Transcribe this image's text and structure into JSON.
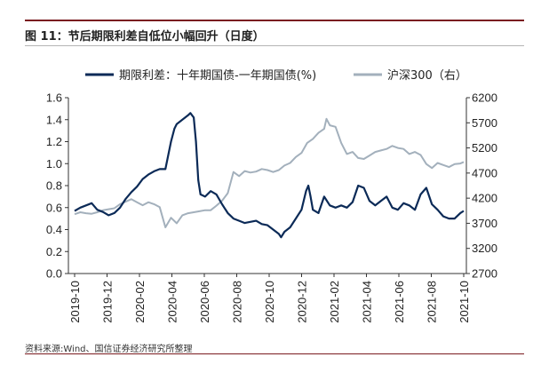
{
  "figure": {
    "title": "图 11：节后期限利差自低位小幅回升（日度）",
    "source": "资料来源:Wind、国信证券经济研究所整理"
  },
  "chart_data": {
    "type": "line",
    "legend": [
      {
        "name": "期限利差：十年期国债-一年期国债(%)",
        "color": "#0b2a57",
        "axis": "left"
      },
      {
        "name": "沪深300（右）",
        "color": "#a3b0bc",
        "axis": "right"
      }
    ],
    "x_tick_labels": [
      "2019-10",
      "2019-12",
      "2020-02",
      "2020-04",
      "2020-06",
      "2020-08",
      "2020-10",
      "2020-12",
      "2021-02",
      "2021-04",
      "2021-06",
      "2021-08",
      "2021-10"
    ],
    "y_left": {
      "min": 0.0,
      "max": 1.6,
      "ticks": [
        "0.0",
        "0.2",
        "0.4",
        "0.6",
        "0.8",
        "1.0",
        "1.2",
        "1.4",
        "1.6"
      ]
    },
    "y_right": {
      "min": 2700,
      "max": 6200,
      "ticks": [
        "2700",
        "3200",
        "3700",
        "4200",
        "4700",
        "5200",
        "5700",
        "6200"
      ]
    },
    "series": [
      {
        "name": "期限利差：十年期国债-一年期国债(%)",
        "axis": "left",
        "points": [
          [
            0,
            0.57
          ],
          [
            0.25,
            0.6
          ],
          [
            0.5,
            0.62
          ],
          [
            0.75,
            0.64
          ],
          [
            1,
            0.58
          ],
          [
            1.25,
            0.56
          ],
          [
            1.5,
            0.53
          ],
          [
            1.75,
            0.55
          ],
          [
            2,
            0.6
          ],
          [
            2.25,
            0.68
          ],
          [
            2.5,
            0.74
          ],
          [
            2.75,
            0.79
          ],
          [
            3,
            0.86
          ],
          [
            3.25,
            0.9
          ],
          [
            3.5,
            0.93
          ],
          [
            3.75,
            0.95
          ],
          [
            4,
            0.95
          ],
          [
            4.1,
            1.05
          ],
          [
            4.25,
            1.2
          ],
          [
            4.4,
            1.32
          ],
          [
            4.5,
            1.36
          ],
          [
            4.75,
            1.4
          ],
          [
            5,
            1.44
          ],
          [
            5.1,
            1.46
          ],
          [
            5.25,
            1.42
          ],
          [
            5.35,
            1.2
          ],
          [
            5.45,
            0.85
          ],
          [
            5.55,
            0.72
          ],
          [
            5.75,
            0.7
          ],
          [
            6,
            0.75
          ],
          [
            6.25,
            0.72
          ],
          [
            6.5,
            0.63
          ],
          [
            6.75,
            0.55
          ],
          [
            7,
            0.5
          ],
          [
            7.25,
            0.48
          ],
          [
            7.5,
            0.46
          ],
          [
            7.75,
            0.47
          ],
          [
            8,
            0.48
          ],
          [
            8.25,
            0.45
          ],
          [
            8.5,
            0.44
          ],
          [
            8.75,
            0.4
          ],
          [
            9,
            0.36
          ],
          [
            9.1,
            0.33
          ],
          [
            9.25,
            0.38
          ],
          [
            9.5,
            0.42
          ],
          [
            9.75,
            0.5
          ],
          [
            10,
            0.58
          ],
          [
            10.2,
            0.75
          ],
          [
            10.3,
            0.8
          ],
          [
            10.4,
            0.7
          ],
          [
            10.5,
            0.58
          ],
          [
            10.75,
            0.55
          ],
          [
            11,
            0.7
          ],
          [
            11.25,
            0.62
          ],
          [
            11.5,
            0.6
          ],
          [
            11.75,
            0.62
          ],
          [
            12,
            0.6
          ],
          [
            12.25,
            0.65
          ],
          [
            12.5,
            0.8
          ],
          [
            12.75,
            0.78
          ],
          [
            13,
            0.66
          ],
          [
            13.25,
            0.62
          ],
          [
            13.5,
            0.66
          ],
          [
            13.75,
            0.7
          ],
          [
            14,
            0.6
          ],
          [
            14.25,
            0.58
          ],
          [
            14.5,
            0.64
          ],
          [
            14.75,
            0.62
          ],
          [
            15,
            0.58
          ],
          [
            15.25,
            0.72
          ],
          [
            15.5,
            0.78
          ],
          [
            15.75,
            0.63
          ],
          [
            16,
            0.58
          ],
          [
            16.25,
            0.52
          ],
          [
            16.5,
            0.5
          ],
          [
            16.75,
            0.5
          ],
          [
            17,
            0.55
          ],
          [
            17.15,
            0.57
          ]
        ]
      },
      {
        "name": "沪深300（右）",
        "axis": "right",
        "points": [
          [
            0,
            3880
          ],
          [
            0.25,
            3920
          ],
          [
            0.5,
            3900
          ],
          [
            0.75,
            3890
          ],
          [
            1,
            3920
          ],
          [
            1.25,
            3960
          ],
          [
            1.5,
            3980
          ],
          [
            1.75,
            4000
          ],
          [
            2,
            4080
          ],
          [
            2.25,
            4130
          ],
          [
            2.5,
            4180
          ],
          [
            2.75,
            4120
          ],
          [
            3,
            4060
          ],
          [
            3.25,
            4120
          ],
          [
            3.5,
            4080
          ],
          [
            3.75,
            4020
          ],
          [
            4,
            3620
          ],
          [
            4.25,
            3810
          ],
          [
            4.5,
            3700
          ],
          [
            4.75,
            3860
          ],
          [
            5,
            3900
          ],
          [
            5.25,
            3920
          ],
          [
            5.5,
            3940
          ],
          [
            5.75,
            3960
          ],
          [
            6,
            3960
          ],
          [
            6.25,
            4050
          ],
          [
            6.5,
            4150
          ],
          [
            6.75,
            4300
          ],
          [
            7,
            4720
          ],
          [
            7.25,
            4640
          ],
          [
            7.5,
            4740
          ],
          [
            7.75,
            4710
          ],
          [
            8,
            4730
          ],
          [
            8.25,
            4780
          ],
          [
            8.5,
            4760
          ],
          [
            8.75,
            4720
          ],
          [
            9,
            4760
          ],
          [
            9.25,
            4850
          ],
          [
            9.5,
            4900
          ],
          [
            9.75,
            5020
          ],
          [
            10,
            5100
          ],
          [
            10.25,
            5300
          ],
          [
            10.5,
            5380
          ],
          [
            10.75,
            5500
          ],
          [
            11,
            5580
          ],
          [
            11.1,
            5780
          ],
          [
            11.25,
            5650
          ],
          [
            11.5,
            5620
          ],
          [
            11.75,
            5300
          ],
          [
            12,
            5080
          ],
          [
            12.25,
            5120
          ],
          [
            12.5,
            5000
          ],
          [
            12.75,
            4980
          ],
          [
            13,
            5050
          ],
          [
            13.25,
            5120
          ],
          [
            13.5,
            5150
          ],
          [
            13.75,
            5180
          ],
          [
            14,
            5240
          ],
          [
            14.25,
            5200
          ],
          [
            14.5,
            5180
          ],
          [
            14.75,
            5080
          ],
          [
            15,
            5120
          ],
          [
            15.25,
            5060
          ],
          [
            15.5,
            4880
          ],
          [
            15.75,
            4800
          ],
          [
            16,
            4900
          ],
          [
            16.25,
            4860
          ],
          [
            16.5,
            4820
          ],
          [
            16.75,
            4880
          ],
          [
            17,
            4890
          ],
          [
            17.15,
            4920
          ]
        ]
      }
    ]
  }
}
